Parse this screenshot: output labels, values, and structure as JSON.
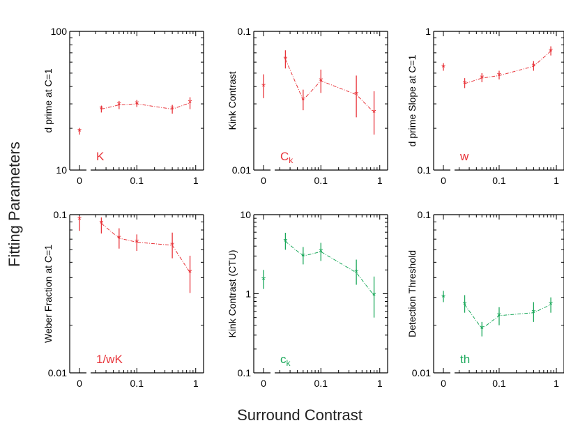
{
  "figure": {
    "ylabel": "Fitting Parameters",
    "xlabel": "Surround Contrast"
  },
  "colors": {
    "red": "#e8343a",
    "green": "#1aa85a",
    "axis": "#000000"
  },
  "chart_data": [
    {
      "type": "scatter",
      "scale": "log-log",
      "grid": false,
      "ylabel": "d prime at C=1",
      "tag": "K",
      "tag_sub": "",
      "color": "red",
      "ylim": [
        10,
        100
      ],
      "ytick_labels": [
        "100",
        "10"
      ],
      "xtick_labels": [
        "0",
        "0.1",
        "1"
      ],
      "series": [
        {
          "x": "0",
          "y": 19,
          "ylo": 18,
          "yhi": 20
        },
        {
          "x": 0.025,
          "y": 27.5,
          "ylo": 26,
          "yhi": 29,
          "connected": true
        },
        {
          "x": 0.05,
          "y": 29.5,
          "ylo": 27.5,
          "yhi": 31.5,
          "connected": true
        },
        {
          "x": 0.1,
          "y": 30,
          "ylo": 28.5,
          "yhi": 32,
          "connected": true
        },
        {
          "x": 0.4,
          "y": 27.5,
          "ylo": 25.5,
          "yhi": 29.5,
          "connected": true
        },
        {
          "x": 0.8,
          "y": 30.5,
          "ylo": 27.5,
          "yhi": 33.5,
          "connected": true
        }
      ]
    },
    {
      "type": "scatter",
      "scale": "log-log",
      "grid": false,
      "ylabel": "Kink Contrast",
      "tag": "C",
      "tag_sub": "k",
      "color": "red",
      "ylim": [
        0.01,
        0.1
      ],
      "ytick_labels": [
        "0.1",
        "0.01"
      ],
      "xtick_labels": [
        "0",
        "0.1",
        "1"
      ],
      "series": [
        {
          "x": "0",
          "y": 0.04,
          "ylo": 0.033,
          "yhi": 0.049
        },
        {
          "x": 0.025,
          "y": 0.063,
          "ylo": 0.054,
          "yhi": 0.073,
          "connected": true
        },
        {
          "x": 0.05,
          "y": 0.032,
          "ylo": 0.027,
          "yhi": 0.038,
          "connected": true
        },
        {
          "x": 0.1,
          "y": 0.044,
          "ylo": 0.036,
          "yhi": 0.053,
          "connected": true
        },
        {
          "x": 0.4,
          "y": 0.035,
          "ylo": 0.024,
          "yhi": 0.048,
          "connected": true
        },
        {
          "x": 0.8,
          "y": 0.026,
          "ylo": 0.018,
          "yhi": 0.037,
          "connected": true
        }
      ]
    },
    {
      "type": "scatter",
      "scale": "log-log",
      "grid": false,
      "ylabel": "d prime  Slope at C=1",
      "tag": "w",
      "tag_sub": "",
      "color": "red",
      "ylim": [
        0.1,
        1
      ],
      "ytick_labels": [
        "1",
        "0.1"
      ],
      "xtick_labels": [
        "0",
        "0.1",
        "1"
      ],
      "series": [
        {
          "x": "0",
          "y": 0.55,
          "ylo": 0.52,
          "yhi": 0.59
        },
        {
          "x": 0.025,
          "y": 0.42,
          "ylo": 0.39,
          "yhi": 0.46,
          "connected": true
        },
        {
          "x": 0.05,
          "y": 0.46,
          "ylo": 0.43,
          "yhi": 0.5,
          "connected": true
        },
        {
          "x": 0.1,
          "y": 0.48,
          "ylo": 0.45,
          "yhi": 0.52,
          "connected": true
        },
        {
          "x": 0.4,
          "y": 0.56,
          "ylo": 0.52,
          "yhi": 0.61,
          "connected": true
        },
        {
          "x": 0.8,
          "y": 0.72,
          "ylo": 0.67,
          "yhi": 0.78,
          "connected": true
        }
      ]
    },
    {
      "type": "scatter",
      "scale": "log-log",
      "grid": false,
      "ylabel": "Weber Fraction at C=1",
      "tag": "1/wK",
      "tag_sub": "",
      "color": "red",
      "ylim": [
        0.01,
        0.1
      ],
      "ytick_labels": [
        "0.1",
        "0.01"
      ],
      "xtick_labels": [
        "0",
        "0.1",
        "1"
      ],
      "series": [
        {
          "x": "0",
          "y": 0.093,
          "ylo": 0.079,
          "yhi": 0.098
        },
        {
          "x": 0.025,
          "y": 0.088,
          "ylo": 0.076,
          "yhi": 0.096,
          "connected": true
        },
        {
          "x": 0.05,
          "y": 0.071,
          "ylo": 0.061,
          "yhi": 0.082,
          "connected": true
        },
        {
          "x": 0.1,
          "y": 0.067,
          "ylo": 0.059,
          "yhi": 0.075,
          "connected": true
        },
        {
          "x": 0.4,
          "y": 0.064,
          "ylo": 0.053,
          "yhi": 0.077,
          "connected": true
        },
        {
          "x": 0.8,
          "y": 0.043,
          "ylo": 0.032,
          "yhi": 0.055,
          "connected": true
        }
      ]
    },
    {
      "type": "scatter",
      "scale": "log-log",
      "grid": false,
      "ylabel": "Kink Contrast (CTU)",
      "tag": "c",
      "tag_sub": "k",
      "color": "green",
      "ylim": [
        0.1,
        10
      ],
      "ytick_labels": [
        "10",
        "1",
        "0.1"
      ],
      "xtick_labels": [
        "0",
        "0.1",
        "1"
      ],
      "series": [
        {
          "x": "0",
          "y": 1.5,
          "ylo": 1.15,
          "yhi": 2.0
        },
        {
          "x": 0.025,
          "y": 4.6,
          "ylo": 3.6,
          "yhi": 5.9,
          "connected": true
        },
        {
          "x": 0.05,
          "y": 3.0,
          "ylo": 2.35,
          "yhi": 3.9,
          "connected": true
        },
        {
          "x": 0.1,
          "y": 3.4,
          "ylo": 2.6,
          "yhi": 4.4,
          "connected": true
        },
        {
          "x": 0.4,
          "y": 1.85,
          "ylo": 1.3,
          "yhi": 2.7,
          "connected": true
        },
        {
          "x": 0.8,
          "y": 0.95,
          "ylo": 0.5,
          "yhi": 1.65,
          "connected": true
        }
      ]
    },
    {
      "type": "scatter",
      "scale": "log-log",
      "grid": false,
      "ylabel": "Detection Threshold",
      "tag": "th",
      "tag_sub": "",
      "color": "green",
      "ylim": [
        0.01,
        0.1
      ],
      "ytick_labels": [
        "0.1",
        "0.01"
      ],
      "xtick_labels": [
        "0",
        "0.1",
        "1"
      ],
      "series": [
        {
          "x": "0",
          "y": 0.03,
          "ylo": 0.028,
          "yhi": 0.033
        },
        {
          "x": 0.025,
          "y": 0.027,
          "ylo": 0.024,
          "yhi": 0.031,
          "connected": true
        },
        {
          "x": 0.05,
          "y": 0.019,
          "ylo": 0.017,
          "yhi": 0.021,
          "connected": true
        },
        {
          "x": 0.1,
          "y": 0.023,
          "ylo": 0.02,
          "yhi": 0.026,
          "connected": true
        },
        {
          "x": 0.4,
          "y": 0.024,
          "ylo": 0.021,
          "yhi": 0.028,
          "connected": true
        },
        {
          "x": 0.8,
          "y": 0.027,
          "ylo": 0.024,
          "yhi": 0.03,
          "connected": true
        }
      ]
    }
  ]
}
